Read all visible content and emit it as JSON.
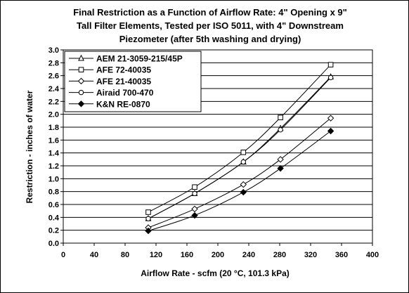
{
  "chart_data": {
    "type": "line",
    "title": [
      "Final Restriction as a Function of Airflow Rate:  4\" Opening x 9\"",
      "Tall Filter Elements, Tested per ISO 5011, with  4\" Downstream",
      "Piezometer (after 5th washing and drying)"
    ],
    "xlabel": "Airflow Rate - scfm (20 °C, 101.3 kPa)",
    "ylabel": "Restriction - inches of water",
    "xlim": [
      0,
      400
    ],
    "ylim": [
      0,
      3.0
    ],
    "x_ticks": [
      "0",
      "40",
      "80",
      "120",
      "160",
      "200",
      "240",
      "280",
      "320",
      "360",
      "400"
    ],
    "y_ticks": [
      "0.0",
      "0.2",
      "0.4",
      "0.6",
      "0.8",
      "1.0",
      "1.2",
      "1.4",
      "1.6",
      "1.8",
      "2.0",
      "2.2",
      "2.4",
      "2.6",
      "2.8",
      "3.0"
    ],
    "grid": "horizontal",
    "legend_position": "top-left",
    "series": [
      {
        "name": "AEM 21-3059-215/45P",
        "marker": "triangle-open",
        "x": [
          110,
          170,
          233,
          281,
          346
        ],
        "y": [
          0.38,
          0.77,
          1.26,
          1.78,
          2.58
        ]
      },
      {
        "name": "AFE 72-40035",
        "marker": "square-open",
        "x": [
          110,
          170,
          233,
          281,
          346
        ],
        "y": [
          0.48,
          0.87,
          1.41,
          1.95,
          2.77
        ]
      },
      {
        "name": "AFE 21-40035",
        "marker": "diamond-open",
        "x": [
          110,
          170,
          233,
          281,
          346
        ],
        "y": [
          0.24,
          0.53,
          0.91,
          1.3,
          1.94
        ]
      },
      {
        "name": "Airaid 700-470",
        "marker": "circle-open",
        "x": [
          110,
          170,
          233,
          281,
          346
        ],
        "y": [
          0.38,
          0.77,
          1.26,
          1.76,
          2.57
        ]
      },
      {
        "name": "K&N RE-0870",
        "marker": "diamond-filled",
        "x": [
          110,
          170,
          233,
          281,
          346
        ],
        "y": [
          0.19,
          0.43,
          0.79,
          1.16,
          1.74
        ]
      }
    ]
  }
}
